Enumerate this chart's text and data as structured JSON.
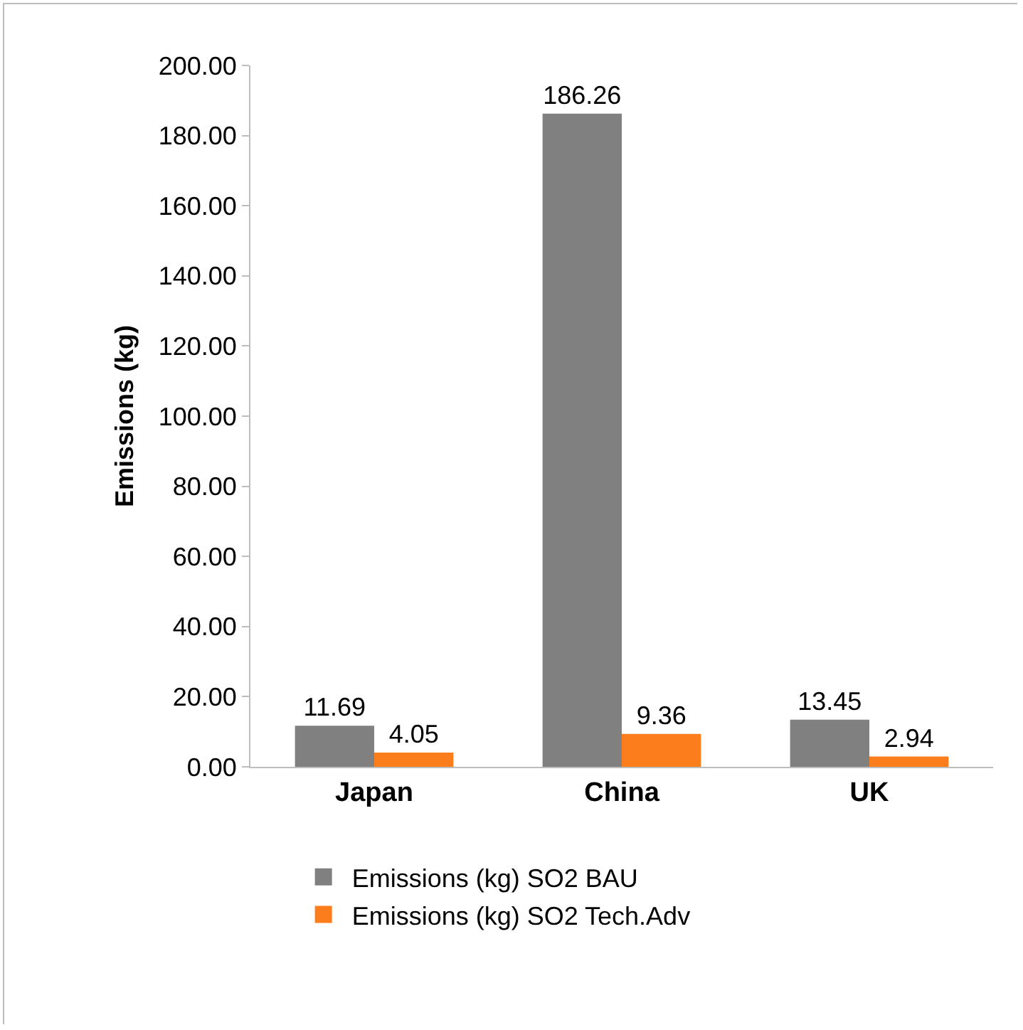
{
  "chart_data": {
    "type": "bar",
    "ylabel": "Emissions (kg)",
    "categories": [
      "Japan",
      "China",
      "UK"
    ],
    "series": [
      {
        "name": "Emissions (kg) SO2 BAU",
        "color": "#808080",
        "values": [
          11.69,
          186.26,
          13.45
        ]
      },
      {
        "name": "Emissions (kg) SO2 Tech.Adv",
        "color": "#fb7d1c",
        "values": [
          4.05,
          9.36,
          2.94
        ]
      }
    ],
    "ylim": [
      0,
      200
    ],
    "yticks": [
      {
        "value": 0,
        "label": "0.00"
      },
      {
        "value": 20,
        "label": "20.00"
      },
      {
        "value": 40,
        "label": "40.00"
      },
      {
        "value": 60,
        "label": "60.00"
      },
      {
        "value": 80,
        "label": "80.00"
      },
      {
        "value": 100,
        "label": "100.00"
      },
      {
        "value": 120,
        "label": "120.00"
      },
      {
        "value": 140,
        "label": "140.00"
      },
      {
        "value": 160,
        "label": "160.00"
      },
      {
        "value": 180,
        "label": "180.00"
      },
      {
        "value": 200,
        "label": "200.00"
      }
    ],
    "data_labels": true,
    "grid": false,
    "legend": "bottom"
  }
}
